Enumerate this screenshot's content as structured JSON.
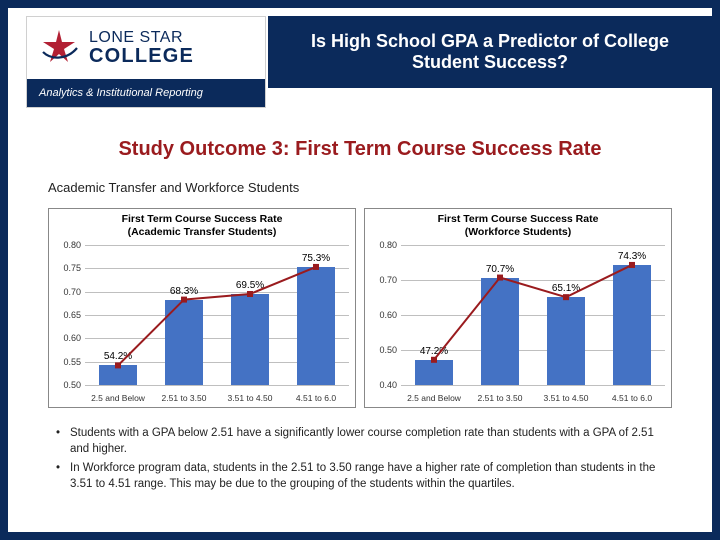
{
  "logo": {
    "line1": "LONE STAR",
    "line2": "COLLEGE",
    "sublabel": "Analytics & Institutional Reporting",
    "star_color": "#b22034",
    "swoosh_color": "#0b2a5b"
  },
  "title": "Is High School GPA a Predictor of College Student Success?",
  "subtitle": "Study Outcome 3: First Term Course Success Rate",
  "section_label": "Academic Transfer and Workforce Students",
  "charts": [
    {
      "title_line1": "First Term Course Success Rate",
      "title_line2": "(Academic Transfer Students)",
      "type": "bar",
      "ylim": [
        0.5,
        0.8
      ],
      "ytick_step": 0.05,
      "bar_color": "#4472c4",
      "line_color": "#9a1b1e",
      "marker_color": "#9a1b1e",
      "grid_color": "#bfbfbf",
      "background_color": "#ffffff",
      "label_fontsize": 10,
      "categories": [
        "2.5 and Below",
        "2.51 to 3.50",
        "3.51 to 4.50",
        "4.51 to 6.0"
      ],
      "values": [
        0.542,
        0.683,
        0.695,
        0.753
      ],
      "value_labels": [
        "54.2%",
        "68.3%",
        "69.5%",
        "75.3%"
      ]
    },
    {
      "title_line1": "First Term Course Success Rate",
      "title_line2": "(Workforce Students)",
      "type": "bar",
      "ylim": [
        0.4,
        0.8
      ],
      "ytick_step": 0.1,
      "bar_color": "#4472c4",
      "line_color": "#9a1b1e",
      "marker_color": "#9a1b1e",
      "grid_color": "#bfbfbf",
      "background_color": "#ffffff",
      "label_fontsize": 10,
      "categories": [
        "2.5 and Below",
        "2.51 to 3.50",
        "3.51 to 4.50",
        "4.51 to 6.0"
      ],
      "values": [
        0.472,
        0.707,
        0.651,
        0.743
      ],
      "value_labels": [
        "47.2%",
        "70.7%",
        "65.1%",
        "74.3%"
      ]
    }
  ],
  "bullets": [
    "Students with a GPA below 2.51 have a significantly lower course completion rate than students with a GPA of 2.51 and higher.",
    "In Workforce program data, students in the 2.51 to 3.50 range have a higher rate of completion than students in the 3.51 to 4.51 range. This may be due to the grouping of the students within the quartiles."
  ],
  "colors": {
    "frame": "#0b2a5b",
    "page_bg": "#ffffff",
    "subtitle": "#9a1b1e"
  }
}
